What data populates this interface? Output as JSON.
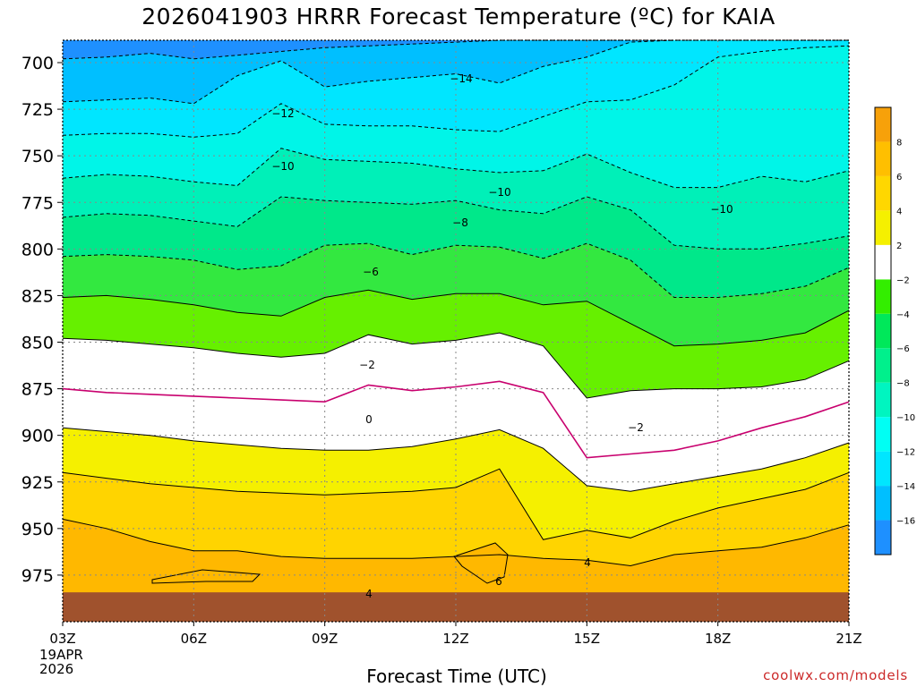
{
  "title": "2026041903 HRRR Forecast Temperature (ºC) for KAIA",
  "xlabel": "Forecast Time (UTC)",
  "credit": "coolwx.com/models",
  "date_line1": "19APR",
  "date_line2": "2026",
  "colors": {
    "ground": "#a0522d",
    "zero_line": "#c8006e",
    "contour": "#000000",
    "grid": "#888888"
  },
  "chart_data": {
    "type": "contour",
    "x_ticks": [
      "03Z",
      "06Z",
      "09Z",
      "12Z",
      "15Z",
      "18Z",
      "21Z"
    ],
    "x_hours": [
      3,
      6,
      9,
      12,
      15,
      18,
      21
    ],
    "y_ticks": [
      700,
      725,
      750,
      775,
      800,
      825,
      850,
      875,
      900,
      925,
      950,
      975
    ],
    "ylim": [
      1000,
      688
    ],
    "ylabel": "",
    "hours": [
      3,
      4,
      5,
      6,
      7,
      8,
      9,
      10,
      11,
      12,
      13,
      14,
      15,
      16,
      17,
      18,
      19,
      20,
      21
    ],
    "isotherms": [
      {
        "level": -16,
        "style": "dashed",
        "p": [
          698,
          697,
          695,
          698,
          696,
          694,
          692,
          691,
          690,
          689,
          688,
          688,
          688,
          688,
          688,
          688,
          688,
          688,
          688
        ]
      },
      {
        "level": -14,
        "style": "dashed",
        "p": [
          721,
          720,
          719,
          722,
          707,
          699,
          713,
          710,
          708,
          706,
          711,
          702,
          697,
          689,
          688,
          688,
          688,
          688,
          688
        ]
      },
      {
        "level": -12,
        "style": "dashed",
        "p": [
          739,
          738,
          738,
          740,
          738,
          722,
          733,
          734,
          734,
          736,
          737,
          729,
          721,
          720,
          712,
          697,
          694,
          692,
          691
        ]
      },
      {
        "level": -10,
        "style": "dashed",
        "p": [
          762,
          760,
          761,
          764,
          766,
          746,
          752,
          753,
          754,
          757,
          759,
          758,
          749,
          759,
          767,
          767,
          761,
          764,
          758
        ]
      },
      {
        "level": -8,
        "style": "dashed",
        "p": [
          783,
          781,
          782,
          785,
          788,
          772,
          774,
          775,
          776,
          774,
          779,
          781,
          772,
          779,
          798,
          800,
          800,
          797,
          793
        ]
      },
      {
        "level": -6,
        "style": "dashed",
        "p": [
          804,
          803,
          804,
          806,
          811,
          809,
          798,
          797,
          803,
          798,
          799,
          805,
          797,
          806,
          826,
          826,
          824,
          820,
          810
        ]
      },
      {
        "level": -4,
        "style": "solid",
        "p": [
          826,
          825,
          827,
          830,
          834,
          836,
          826,
          822,
          827,
          824,
          824,
          830,
          828,
          840,
          852,
          851,
          849,
          845,
          833
        ]
      },
      {
        "level": -2,
        "style": "solid",
        "p": [
          848,
          849,
          851,
          853,
          856,
          858,
          856,
          846,
          851,
          849,
          845,
          852,
          880,
          876,
          875,
          875,
          874,
          870,
          860
        ]
      },
      {
        "level": 0,
        "style": "solid",
        "p": [
          875,
          877,
          878,
          879,
          880,
          881,
          882,
          873,
          876,
          874,
          871,
          877,
          912,
          910,
          908,
          903,
          896,
          890,
          882
        ]
      },
      {
        "level": 2,
        "style": "solid",
        "p": [
          896,
          898,
          900,
          903,
          905,
          907,
          908,
          908,
          906,
          902,
          897,
          907,
          927,
          930,
          926,
          922,
          918,
          912,
          904
        ]
      },
      {
        "level": 4,
        "style": "solid",
        "p": [
          920,
          923,
          926,
          928,
          930,
          931,
          932,
          931,
          930,
          928,
          918,
          956,
          951,
          955,
          946,
          939,
          934,
          929,
          920
        ]
      },
      {
        "level": 6,
        "style": "solid",
        "p": [
          945,
          950,
          957,
          962,
          962,
          965,
          966,
          966,
          966,
          965,
          964,
          966,
          967,
          970,
          964,
          962,
          960,
          955,
          948
        ]
      }
    ],
    "ground_p": 990,
    "contour_labels": [
      "-14",
      "-12",
      "-10",
      "-10",
      "-10",
      "-8",
      "-6",
      "-2",
      "0",
      "-2",
      "4",
      "4",
      "6"
    ],
    "colorbar": {
      "levels": [
        -16,
        -14,
        -12,
        -10,
        -8,
        -6,
        -4,
        -2,
        2,
        4,
        6,
        8
      ],
      "tick_labels": [
        "-16",
        "-14",
        "-12",
        "-10",
        "-8",
        "-6",
        "-4",
        "-2",
        "2",
        "4",
        "6",
        "8"
      ],
      "colors": [
        "#1e90ff",
        "#00bfff",
        "#00e6ff",
        "#00fff4",
        "#00f5c0",
        "#00f08c",
        "#00e85a",
        "#33ee00",
        "#ffffff",
        "#f5f000",
        "#ffd700",
        "#ffbf00",
        "#f7a10a"
      ]
    },
    "fill_colors": {
      "-16": "#1e90ff",
      "-14": "#00bfff",
      "-12": "#00e6ff",
      "-10": "#00f5e8",
      "-8": "#00f0b8",
      "-6": "#00e88a",
      "-4": "#33e840",
      "-2": "#66f000",
      "0": "#ffffff",
      "2": "#ffffff",
      "4": "#f5f000",
      "6": "#ffd400",
      "8": "#ffb800"
    }
  }
}
